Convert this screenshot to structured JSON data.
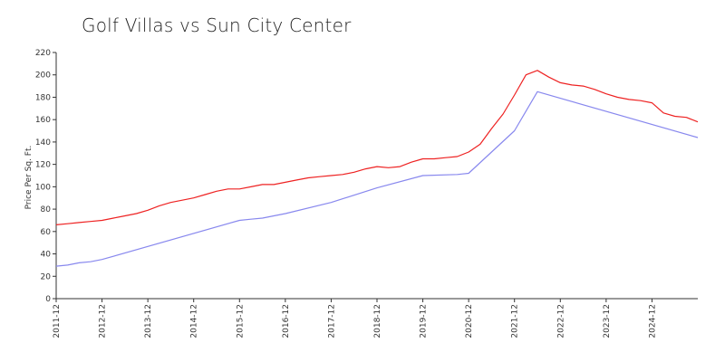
{
  "chart_data": {
    "type": "line",
    "title": "Golf Villas vs Sun City Center",
    "xlabel": "",
    "ylabel": "Price Per Sq. Ft.",
    "ylim": [
      0,
      220
    ],
    "yticks": [
      0,
      20,
      40,
      60,
      80,
      100,
      120,
      140,
      160,
      180,
      200,
      220
    ],
    "xlim": [
      "2011-12",
      "2025-12"
    ],
    "xticks": [
      "2011-12",
      "2012-12",
      "2013-12",
      "2014-12",
      "2015-12",
      "2016-12",
      "2017-12",
      "2018-12",
      "2019-12",
      "2020-12",
      "2021-12",
      "2022-12",
      "2023-12",
      "2024-12"
    ],
    "grid": false,
    "series": [
      {
        "color": "#ee2222",
        "points": [
          [
            "2011-12",
            66
          ],
          [
            "2012-03",
            67
          ],
          [
            "2012-06",
            68
          ],
          [
            "2012-09",
            69
          ],
          [
            "2012-12",
            70
          ],
          [
            "2013-03",
            72
          ],
          [
            "2013-06",
            74
          ],
          [
            "2013-09",
            76
          ],
          [
            "2013-12",
            79
          ],
          [
            "2014-03",
            83
          ],
          [
            "2014-06",
            86
          ],
          [
            "2014-09",
            88
          ],
          [
            "2014-12",
            90
          ],
          [
            "2015-03",
            93
          ],
          [
            "2015-06",
            96
          ],
          [
            "2015-09",
            98
          ],
          [
            "2015-12",
            98
          ],
          [
            "2016-03",
            100
          ],
          [
            "2016-06",
            102
          ],
          [
            "2016-09",
            102
          ],
          [
            "2016-12",
            104
          ],
          [
            "2017-03",
            106
          ],
          [
            "2017-06",
            108
          ],
          [
            "2017-09",
            109
          ],
          [
            "2017-12",
            110
          ],
          [
            "2018-03",
            111
          ],
          [
            "2018-06",
            113
          ],
          [
            "2018-09",
            116
          ],
          [
            "2018-12",
            118
          ],
          [
            "2019-03",
            117
          ],
          [
            "2019-06",
            118
          ],
          [
            "2019-09",
            122
          ],
          [
            "2019-12",
            125
          ],
          [
            "2020-03",
            125
          ],
          [
            "2020-06",
            126
          ],
          [
            "2020-09",
            127
          ],
          [
            "2020-12",
            131
          ],
          [
            "2021-03",
            138
          ],
          [
            "2021-06",
            152
          ],
          [
            "2021-09",
            165
          ],
          [
            "2021-12",
            182
          ],
          [
            "2022-03",
            200
          ],
          [
            "2022-06",
            204
          ],
          [
            "2022-09",
            198
          ],
          [
            "2022-12",
            193
          ],
          [
            "2023-03",
            191
          ],
          [
            "2023-06",
            190
          ],
          [
            "2023-09",
            187
          ],
          [
            "2023-12",
            183
          ],
          [
            "2024-03",
            180
          ],
          [
            "2024-06",
            178
          ],
          [
            "2024-09",
            177
          ],
          [
            "2024-12",
            175
          ],
          [
            "2025-03",
            166
          ],
          [
            "2025-06",
            163
          ],
          [
            "2025-09",
            162
          ],
          [
            "2025-12",
            158
          ]
        ]
      },
      {
        "color": "#8888ee",
        "points": [
          [
            "2011-12",
            29
          ],
          [
            "2012-03",
            30
          ],
          [
            "2012-06",
            32
          ],
          [
            "2012-09",
            33
          ],
          [
            "2012-12",
            35
          ],
          [
            "2015-12",
            70
          ],
          [
            "2016-03",
            71
          ],
          [
            "2016-06",
            72
          ],
          [
            "2016-09",
            74
          ],
          [
            "2016-12",
            76
          ],
          [
            "2017-12",
            86
          ],
          [
            "2018-12",
            99
          ],
          [
            "2019-12",
            110
          ],
          [
            "2020-09",
            111
          ],
          [
            "2020-12",
            112
          ],
          [
            "2021-12",
            150
          ],
          [
            "2022-06",
            185
          ],
          [
            "2025-12",
            144
          ]
        ]
      }
    ]
  }
}
